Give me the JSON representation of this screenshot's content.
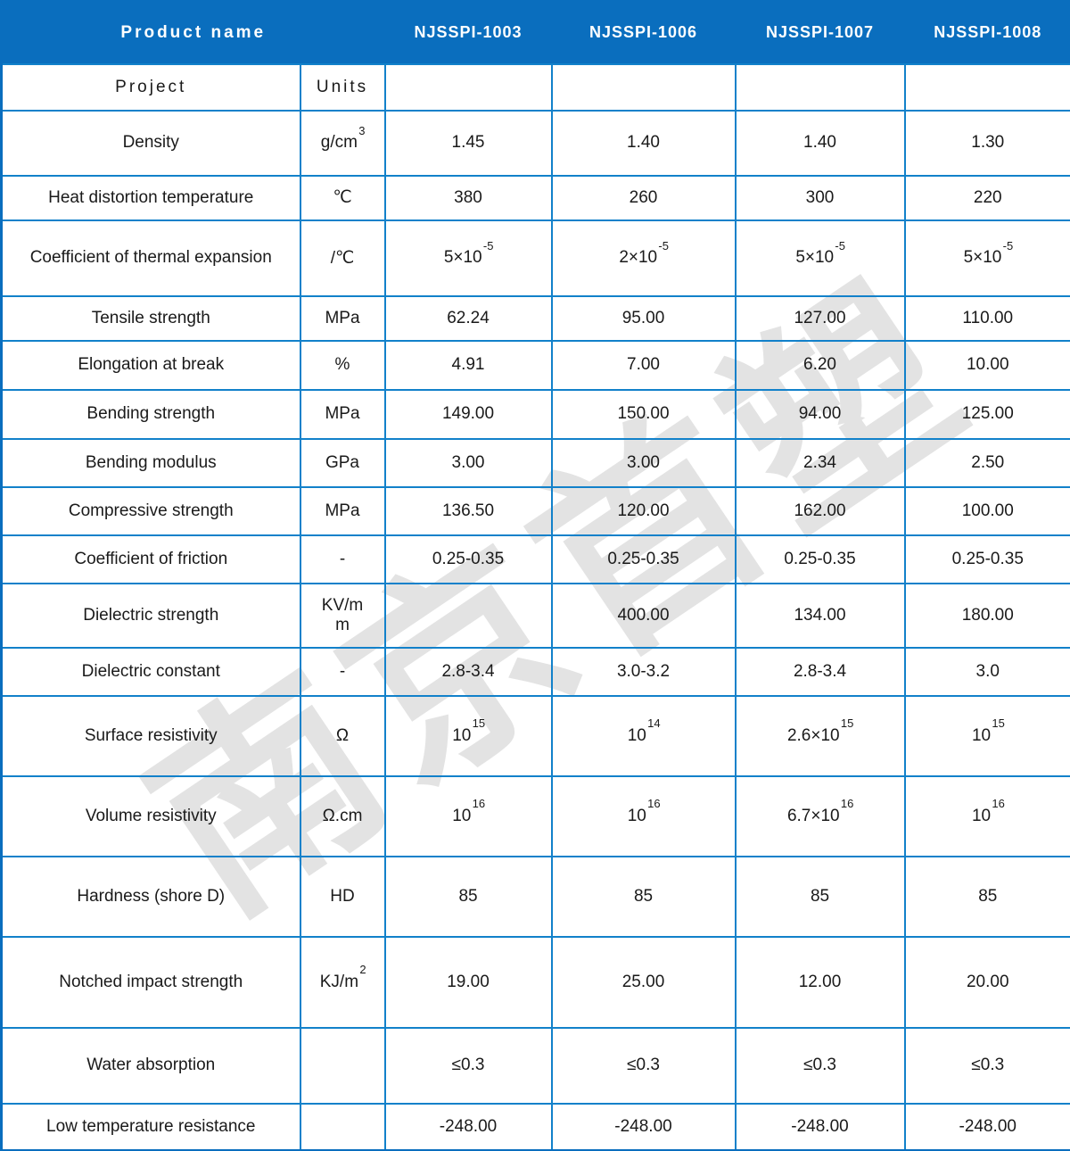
{
  "watermark": {
    "text": "南京首塑"
  },
  "colors": {
    "header_bg": "#0a6ebe",
    "grid_line": "#1281ca",
    "header_text": "#ffffff",
    "body_text": "#1a1a1a",
    "watermark_gray": "#e3e3e3"
  },
  "header": {
    "product_name": "Product name",
    "project_label": "Project",
    "units_label": "Units",
    "products": [
      "NJSSPI-1003",
      "NJSSPI-1006",
      "NJSSPI-1007",
      "NJSSPI-1008"
    ]
  },
  "rows": [
    {
      "label": "Density",
      "unit": "g/cm^{3}",
      "values": [
        "1.45",
        "1.40",
        "1.40",
        "1.30"
      ]
    },
    {
      "label": "Heat distortion temperature",
      "unit": "℃",
      "values": [
        "380",
        "260",
        "300",
        "220"
      ]
    },
    {
      "label": "Coefficient of thermal expansion",
      "unit": "/℃",
      "values": [
        "5×10^{-5}",
        "2×10^{-5}",
        "5×10^{-5}",
        "5×10^{-5}"
      ]
    },
    {
      "label": "Tensile strength",
      "unit": "MPa",
      "values": [
        "62.24",
        "95.00",
        "127.00",
        "110.00"
      ]
    },
    {
      "label": "Elongation at break",
      "unit": "%",
      "values": [
        "4.91",
        "7.00",
        "6.20",
        "10.00"
      ]
    },
    {
      "label": "Bending strength",
      "unit": "MPa",
      "values": [
        "149.00",
        "150.00",
        "94.00",
        "125.00"
      ]
    },
    {
      "label": "Bending modulus",
      "unit": "GPa",
      "values": [
        "3.00",
        "3.00",
        "2.34",
        "2.50"
      ]
    },
    {
      "label": "Compressive strength",
      "unit": "MPa",
      "values": [
        "136.50",
        "120.00",
        "162.00",
        "100.00"
      ]
    },
    {
      "label": "Coefficient of friction",
      "unit": "-",
      "values": [
        "0.25-0.35",
        "0.25-0.35",
        "0.25-0.35",
        "0.25-0.35"
      ]
    },
    {
      "label": "Dielectric strength",
      "unit": "KV/m\nm",
      "values": [
        "",
        "400.00",
        "134.00",
        "180.00"
      ]
    },
    {
      "label": "Dielectric constant",
      "unit": "-",
      "values": [
        "2.8-3.4",
        "3.0-3.2",
        "2.8-3.4",
        "3.0"
      ]
    },
    {
      "label": "Surface resistivity",
      "unit": "Ω",
      "values": [
        "10^{15}",
        "10^{14}",
        "2.6×10^{15}",
        "10^{15}"
      ]
    },
    {
      "label": "Volume resistivity",
      "unit": "Ω.cm",
      "values": [
        "10^{16}",
        "10^{16}",
        "6.7×10^{16}",
        "10^{16}"
      ]
    },
    {
      "label": "Hardness (shore D)",
      "unit": "HD",
      "values": [
        "85",
        "85",
        "85",
        "85"
      ]
    },
    {
      "label": "Notched impact strength",
      "unit": "KJ/m^{2}",
      "values": [
        "19.00",
        "25.00",
        "12.00",
        "20.00"
      ]
    },
    {
      "label": "Water absorption",
      "unit": "",
      "values": [
        "≤0.3",
        "≤0.3",
        "≤0.3",
        "≤0.3"
      ]
    },
    {
      "label": "Low temperature resistance",
      "unit": "",
      "values": [
        "-248.00",
        "-248.00",
        "-248.00",
        "-248.00"
      ]
    }
  ]
}
